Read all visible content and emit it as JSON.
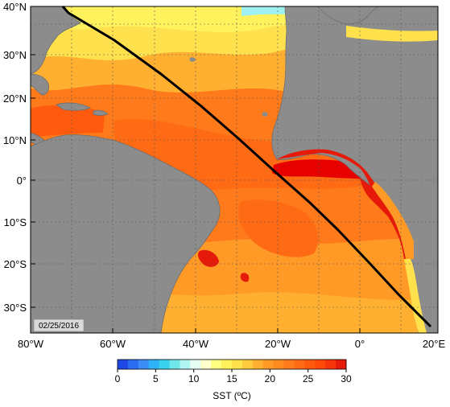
{
  "map": {
    "date_label": "02/25/2016",
    "lat_labels": [
      "40°N",
      "30°N",
      "20°N",
      "10°N",
      "0°",
      "10°S",
      "20°S",
      "30°S"
    ],
    "lon_labels": [
      "80°W",
      "60°W",
      "40°W",
      "20°W",
      "0°",
      "20°E"
    ],
    "colors": {
      "land": "#8c8c8c",
      "track": "#000000",
      "grid": "#555555",
      "sst_cool": "#ffff99",
      "sst_warm": "#ff8c1a",
      "sst_hot": "#ff5a00",
      "sst_max": "#e60000"
    }
  },
  "colorbar": {
    "title": "SST (ºC)",
    "ticks": [
      "0",
      "5",
      "10",
      "15",
      "20",
      "25",
      "30"
    ],
    "min": 0,
    "max": 30,
    "colors": [
      "#1f48e6",
      "#2c6cf0",
      "#3a8df5",
      "#2fb1f5",
      "#38d2ef",
      "#70e7e8",
      "#b2f4f0",
      "#e6fff2",
      "#ffffcc",
      "#ffff80",
      "#fff25c",
      "#ffe04d",
      "#ffcc3d",
      "#ffb030",
      "#ff9a26",
      "#ff8a1f",
      "#ff7a1a",
      "#ff6a14",
      "#ff5a0d",
      "#ff4a0a",
      "#f5360a",
      "#e61a0a"
    ]
  }
}
